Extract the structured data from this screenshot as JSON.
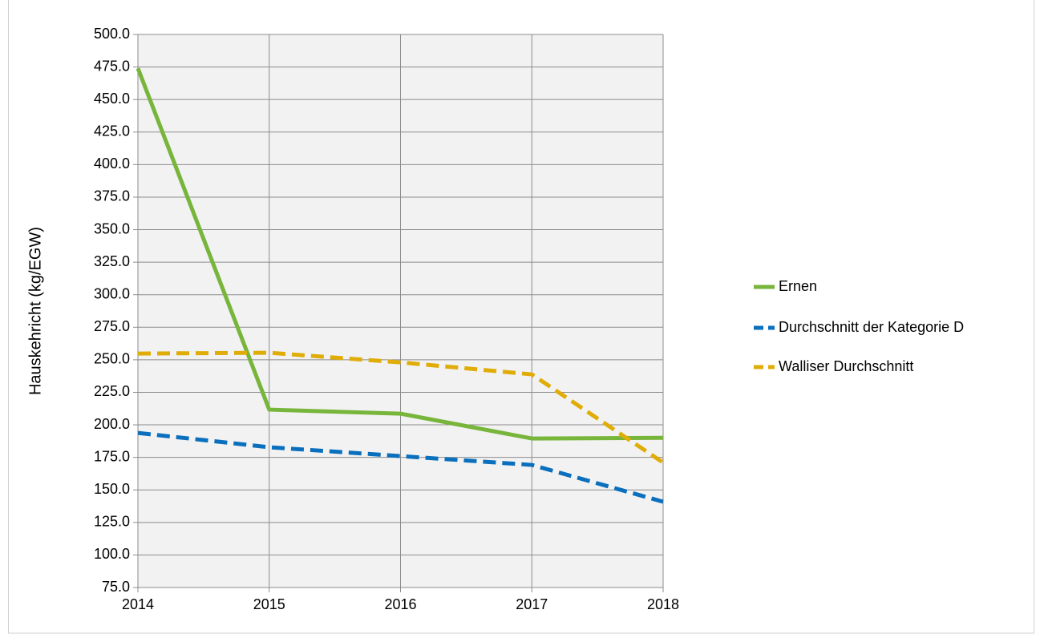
{
  "chart_data": {
    "type": "line",
    "y_label": "Hauskehricht (kg/EGW)",
    "categories": [
      "2014",
      "2015",
      "2016",
      "2017",
      "2018"
    ],
    "series": [
      {
        "name": "Ernen",
        "color": "#77b53b",
        "dash": false,
        "values": [
          474,
          211.7,
          208.6,
          189.5,
          190
        ]
      },
      {
        "name": "Durchschnitt der Kategorie D",
        "color": "#0a6fbd",
        "dash": true,
        "values": [
          193.8,
          182.8,
          176,
          169.2,
          140.9
        ]
      },
      {
        "name": "Walliser Durchschnitt",
        "color": "#e0ad08",
        "dash": true,
        "values": [
          254.8,
          255.4,
          248,
          238.8,
          171
        ]
      }
    ],
    "ylim": [
      75,
      500
    ],
    "yticks": [
      {
        "value": 75,
        "label": "75.0"
      },
      {
        "value": 100,
        "label": "100.0"
      },
      {
        "value": 125,
        "label": "125.0"
      },
      {
        "value": 150,
        "label": "150.0"
      },
      {
        "value": 175,
        "label": "175.0"
      },
      {
        "value": 200,
        "label": "200.0"
      },
      {
        "value": 225,
        "label": "225.0"
      },
      {
        "value": 250,
        "label": "250.0"
      },
      {
        "value": 275,
        "label": "275.0"
      },
      {
        "value": 300,
        "label": "300.0"
      },
      {
        "value": 325,
        "label": "325.0"
      },
      {
        "value": 350,
        "label": "350.0"
      },
      {
        "value": 375,
        "label": "375.0"
      },
      {
        "value": 400,
        "label": "400.0"
      },
      {
        "value": 425,
        "label": "425.0"
      },
      {
        "value": 450,
        "label": "450.0"
      },
      {
        "value": 475,
        "label": "475.0"
      },
      {
        "value": 500,
        "label": "500.0"
      }
    ],
    "grid": true,
    "legend": "right"
  }
}
